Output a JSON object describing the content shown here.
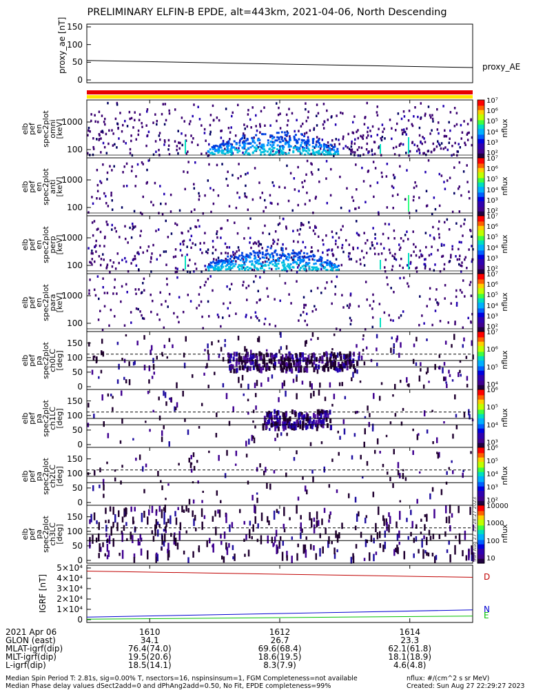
{
  "title": "PRELIMINARY ELFIN-B EPDE, alt=443km, 2021-04-06, North Descending",
  "colors": {
    "bar_red": "#e80000",
    "bar_yellow": "#ffe800",
    "field_D": "#c00000",
    "field_N": "#0000d0",
    "field_E": "#00c000"
  },
  "chart_data": [
    {
      "type": "line",
      "panel": "proxy_ae",
      "ylabel": "proxy_ae\n[nT]",
      "yticks": [
        "150",
        "100",
        "50",
        "0"
      ],
      "ylim": [
        0,
        150
      ],
      "x": [
        0,
        1
      ],
      "series": [
        {
          "name": "proxy_AE",
          "values": [
            55,
            35
          ]
        }
      ]
    },
    {
      "type": "heatmap",
      "panel": "elb_pef_en_spec2plot_omni",
      "ylabel": "elb\npef\nen\nspec2plot\nomni\n[keV]",
      "yticks": [
        "1000",
        "100"
      ],
      "colorbar": {
        "label": "nflux",
        "ticks": [
          "10^7",
          "10^6",
          "10^5",
          "10^4",
          "10^3",
          "10^2"
        ]
      }
    },
    {
      "type": "heatmap",
      "panel": "elb_pef_en_spec2plot_anti",
      "ylabel": "elb\npef\nen\nspec2plot\nanti\n[keV]",
      "yticks": [
        "1000",
        "100"
      ],
      "colorbar": {
        "label": "nflux",
        "ticks": [
          "10^7",
          "10^6",
          "10^5",
          "10^4",
          "10^3",
          "10^2"
        ]
      }
    },
    {
      "type": "heatmap",
      "panel": "elb_pef_en_spec2plot_perp",
      "ylabel": "elb\npef\nen\nspec2plot\nperp\n[keV]",
      "yticks": [
        "1000",
        "100"
      ],
      "colorbar": {
        "label": "nflux",
        "ticks": [
          "10^7",
          "10^6",
          "10^5",
          "10^4",
          "10^3",
          "10^2"
        ]
      }
    },
    {
      "type": "heatmap",
      "panel": "elb_pef_en_spec2plot_para",
      "ylabel": "elb\npef\nen\nspec2plot\npara\n[keV]",
      "yticks": [
        "1000",
        "100"
      ],
      "colorbar": {
        "label": "nflux",
        "ticks": [
          "10^7",
          "10^6",
          "10^5",
          "10^4",
          "10^3",
          "10^2"
        ]
      }
    },
    {
      "type": "heatmap",
      "panel": "elb_pef_pa_spec2plot_ch0LC",
      "ylabel": "elb\npef\npa\nspec2plot\nch0LC\n[deg]",
      "yticks": [
        "150",
        "100",
        "50",
        "0"
      ],
      "colorbar": {
        "label": "nflux",
        "ticks": [
          "10^7",
          "10^6",
          "10^5",
          "10^4"
        ]
      }
    },
    {
      "type": "heatmap",
      "panel": "elb_pef_pa_spec2plot_ch1LC",
      "ylabel": "elb\npef\npa\nspec2plot\nch1LC\n[deg]",
      "yticks": [
        "150",
        "100",
        "50",
        "0"
      ],
      "colorbar": {
        "label": "nflux",
        "ticks": [
          "10^6",
          "10^5",
          "10^4",
          "10^3"
        ]
      }
    },
    {
      "type": "heatmap",
      "panel": "elb_pef_pa_spec2plot_ch2LC",
      "ylabel": "elb\npef\npa\nspec2plot\nch2LC\n[deg]",
      "yticks": [
        "150",
        "100",
        "50",
        "0"
      ],
      "colorbar": {
        "label": "nflux",
        "ticks": [
          "10^6",
          "10^5",
          "10^4",
          "10^3",
          "10^2"
        ]
      }
    },
    {
      "type": "heatmap",
      "panel": "elb_pef_pa_spec2plot_ch3LC",
      "ylabel": "elb\npef\npa\nspec2plot\nch3LC\n[deg]",
      "yticks": [
        "150",
        "100",
        "50",
        "0"
      ],
      "colorbar": {
        "label": "nflux",
        "ticks": [
          "10000",
          "1000",
          "100",
          "10"
        ]
      }
    },
    {
      "type": "line",
      "panel": "IGRF",
      "ylabel": "IGRF\n[nT]",
      "yticks": [
        "5×10^4",
        "4×10^4",
        "3×10^4",
        "2×10^4",
        "1×10^4",
        "0"
      ],
      "ylim": [
        0,
        50000
      ],
      "x": [
        0,
        1
      ],
      "series": [
        {
          "name": "D",
          "values": [
            47000,
            41000
          ]
        },
        {
          "name": "N",
          "values": [
            2500,
            9500
          ]
        },
        {
          "name": "E",
          "values": [
            500,
            3500
          ]
        }
      ]
    }
  ],
  "xaxis": {
    "row_labels": [
      "2021 Apr 06",
      "GLON (east)",
      "MLAT-igrf(dip)",
      "MLT-igrf(dip)",
      "L-igrf(dip)"
    ],
    "columns": [
      {
        "time": "1610",
        "glon": "34.1",
        "mlat": "76.4(74.0)",
        "mlt": "19.5(20.6)",
        "l": "18.5(14.1)"
      },
      {
        "time": "1612",
        "glon": "26.7",
        "mlat": "69.6(68.4)",
        "mlt": "18.6(19.5)",
        "l": "8.3(7.9)"
      },
      {
        "time": "1614",
        "glon": "23.3",
        "mlat": "62.1(61.8)",
        "mlt": "18.1(18.9)",
        "l": "4.6(4.8)"
      }
    ]
  },
  "footer": {
    "line1": "Median Spin Period T: 2.81s, sig=0.00% T, nsectors=16, nspinsinsum=1, FGM Completeness=not available",
    "line2": "Median Phase delay values dSect2add=0 and dPhAng2add=0.50, No Fit, EPDE completeness=99%",
    "units": "nflux: #/(cm^2 s sr MeV)",
    "created": "Created: Sun Aug 27 22:29:27 2023",
    "stamp": "Sun Aug 27 15:28:27 2023"
  }
}
